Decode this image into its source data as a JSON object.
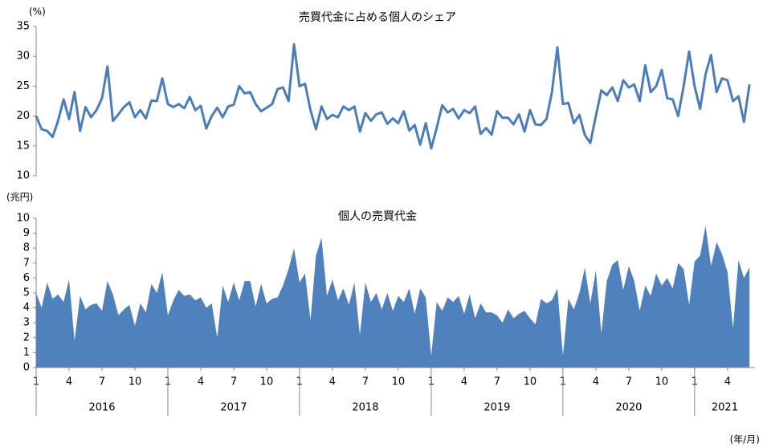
{
  "chart_data": [
    {
      "type": "line",
      "title": "売買代金に占める個人のシェア",
      "y_label": "(%)",
      "color": "#4a7ebb",
      "xlim": [
        0,
        65.5
      ],
      "ylim": [
        10,
        35
      ],
      "yticks": [
        10,
        15,
        20,
        25,
        30,
        35
      ],
      "x": [
        0,
        0.5,
        1,
        1.5,
        2,
        2.5,
        3,
        3.5,
        4,
        4.5,
        5,
        5.5,
        6,
        6.5,
        7,
        7.5,
        8,
        8.5,
        9,
        9.5,
        10,
        10.5,
        11,
        11.5,
        12,
        12.5,
        13,
        13.5,
        14,
        14.5,
        15,
        15.5,
        16,
        16.5,
        17,
        17.5,
        18,
        18.5,
        19,
        19.5,
        20,
        20.5,
        21,
        21.5,
        22,
        22.5,
        23,
        23.5,
        24,
        24.5,
        25,
        25.5,
        26,
        26.5,
        27,
        27.5,
        28,
        28.5,
        29,
        29.5,
        30,
        30.5,
        31,
        31.5,
        32,
        32.5,
        33,
        33.5,
        34,
        34.5,
        35,
        35.5,
        36,
        36.5,
        37,
        37.5,
        38,
        38.5,
        39,
        39.5,
        40,
        40.5,
        41,
        41.5,
        42,
        42.5,
        43,
        43.5,
        44,
        44.5,
        45,
        45.5,
        46,
        46.5,
        47,
        47.5,
        48,
        48.5,
        49,
        49.5,
        50,
        50.5,
        51,
        51.5,
        52,
        52.5,
        53,
        53.5,
        54,
        54.5,
        55,
        55.5,
        56,
        56.5,
        57,
        57.5,
        58,
        58.5,
        59,
        59.5,
        60,
        60.5,
        61,
        61.5,
        62,
        62.5,
        63,
        63.5,
        64,
        64.5,
        65
      ],
      "values": [
        20,
        17.8,
        17.5,
        16.5,
        19.2,
        22.8,
        19.5,
        24,
        17.5,
        21.5,
        19.8,
        21,
        23,
        28.3,
        19.2,
        20.3,
        21.5,
        22.3,
        19.8,
        21,
        19.6,
        22.6,
        22.5,
        26.3,
        22,
        21.5,
        22,
        21.3,
        23.2,
        21,
        21.7,
        17.9,
        20,
        21.4,
        19.8,
        21.6,
        21.9,
        25,
        23.8,
        24,
        22,
        20.8,
        21.4,
        22,
        24.5,
        24.8,
        22.5,
        32,
        25,
        25.4,
        21,
        17.8,
        21.6,
        19.5,
        20.2,
        19.8,
        21.6,
        21,
        21.6,
        17.4,
        20.5,
        19.2,
        20.3,
        20.6,
        18.7,
        19.6,
        18.8,
        20.8,
        17.6,
        18.5,
        15.2,
        18.8,
        14.6,
        18,
        21.8,
        20.6,
        21.2,
        19.6,
        21,
        20.5,
        21.6,
        17,
        18,
        16.9,
        20.8,
        19.7,
        19.7,
        18.6,
        20.3,
        17.4,
        21,
        18.6,
        18.5,
        19.5,
        24,
        31.5,
        22,
        22.2,
        18.8,
        20.2,
        16.8,
        15.5,
        20,
        24.3,
        23.5,
        24.8,
        22.5,
        26,
        24.8,
        25.3,
        22.5,
        28.5,
        24,
        25,
        27.7,
        23,
        22.8,
        20,
        25,
        30.8,
        25,
        21.2,
        27,
        30.2,
        24,
        26.3,
        26,
        22.5,
        23.3,
        19,
        25.3
      ]
    },
    {
      "type": "area",
      "title": "個人の売買代金",
      "y_label": "(兆円)",
      "x_label": "(年/月)",
      "color": "#4f81bd",
      "xlim": [
        0,
        65.5
      ],
      "ylim": [
        0,
        10
      ],
      "yticks": [
        0,
        1,
        2,
        3,
        4,
        5,
        6,
        7,
        8,
        9,
        10
      ],
      "xticks": [
        {
          "value": 0,
          "label": "1"
        },
        {
          "value": 3,
          "label": "4"
        },
        {
          "value": 6,
          "label": "7"
        },
        {
          "value": 9,
          "label": "10"
        },
        {
          "value": 12,
          "label": "1"
        },
        {
          "value": 15,
          "label": "4"
        },
        {
          "value": 18,
          "label": "7"
        },
        {
          "value": 21,
          "label": "10"
        },
        {
          "value": 24,
          "label": "1"
        },
        {
          "value": 27,
          "label": "4"
        },
        {
          "value": 30,
          "label": "7"
        },
        {
          "value": 33,
          "label": "10"
        },
        {
          "value": 36,
          "label": "1"
        },
        {
          "value": 39,
          "label": "4"
        },
        {
          "value": 42,
          "label": "7"
        },
        {
          "value": 45,
          "label": "10"
        },
        {
          "value": 48,
          "label": "1"
        },
        {
          "value": 51,
          "label": "4"
        },
        {
          "value": 54,
          "label": "7"
        },
        {
          "value": 57,
          "label": "10"
        },
        {
          "value": 60,
          "label": "1"
        },
        {
          "value": 63,
          "label": "4"
        }
      ],
      "xgroups": [
        {
          "label": "2016",
          "range": [
            0,
            12
          ]
        },
        {
          "label": "2017",
          "range": [
            12,
            24
          ]
        },
        {
          "label": "2018",
          "range": [
            24,
            36
          ]
        },
        {
          "label": "2019",
          "range": [
            36,
            48
          ]
        },
        {
          "label": "2020",
          "range": [
            48,
            60
          ]
        },
        {
          "label": "2021",
          "range": [
            60,
            65.5
          ]
        }
      ],
      "x": [
        0,
        0.5,
        1,
        1.5,
        2,
        2.5,
        3,
        3.5,
        4,
        4.5,
        5,
        5.5,
        6,
        6.5,
        7,
        7.5,
        8,
        8.5,
        9,
        9.5,
        10,
        10.5,
        11,
        11.5,
        12,
        12.5,
        13,
        13.5,
        14,
        14.5,
        15,
        15.5,
        16,
        16.5,
        17,
        17.5,
        18,
        18.5,
        19,
        19.5,
        20,
        20.5,
        21,
        21.5,
        22,
        22.5,
        23,
        23.5,
        24,
        24.5,
        25,
        25.5,
        26,
        26.5,
        27,
        27.5,
        28,
        28.5,
        29,
        29.5,
        30,
        30.5,
        31,
        31.5,
        32,
        32.5,
        33,
        33.5,
        34,
        34.5,
        35,
        35.5,
        36,
        36.5,
        37,
        37.5,
        38,
        38.5,
        39,
        39.5,
        40,
        40.5,
        41,
        41.5,
        42,
        42.5,
        43,
        43.5,
        44,
        44.5,
        45,
        45.5,
        46,
        46.5,
        47,
        47.5,
        48,
        48.5,
        49,
        49.5,
        50,
        50.5,
        51,
        51.5,
        52,
        52.5,
        53,
        53.5,
        54,
        54.5,
        55,
        55.5,
        56,
        56.5,
        57,
        57.5,
        58,
        58.5,
        59,
        59.5,
        60,
        60.5,
        61,
        61.5,
        62,
        62.5,
        63,
        63.5,
        64,
        64.5,
        65
      ],
      "values": [
        5,
        4,
        5.7,
        4.6,
        4.9,
        4.4,
        5.9,
        1.8,
        4.8,
        3.9,
        4.2,
        4.3,
        3.8,
        5.8,
        4.9,
        3.5,
        3.9,
        4.2,
        2.8,
        4.3,
        3.7,
        5.6,
        5,
        6.4,
        3.5,
        4.5,
        5.2,
        4.8,
        4.9,
        4.5,
        4.7,
        4,
        4.3,
        2,
        5.5,
        4.4,
        5.7,
        4.5,
        5.8,
        5.8,
        4.1,
        5.6,
        4.3,
        4.6,
        4.7,
        5.5,
        6.6,
        8,
        5.7,
        6.3,
        3.2,
        7.5,
        8.7,
        4.8,
        5.9,
        4.5,
        5.3,
        4.2,
        5.7,
        2.2,
        5.7,
        4.4,
        5,
        3.9,
        5,
        3.8,
        4.8,
        4.4,
        5.3,
        3.6,
        5.3,
        4.7,
        0.8,
        4.4,
        3.8,
        4.7,
        4.4,
        4.8,
        3.6,
        4.9,
        3.3,
        4.3,
        3.7,
        3.7,
        3.5,
        3,
        3.9,
        3.3,
        3.6,
        3.8,
        3.3,
        2.9,
        4.6,
        4.3,
        4.5,
        5.3,
        0.8,
        4.6,
        3.9,
        5,
        6.7,
        4.3,
        6.5,
        2.3,
        5.8,
        6.9,
        7.2,
        5.2,
        6.8,
        5.8,
        3.8,
        5.5,
        4.8,
        6.3,
        5.5,
        6,
        5.3,
        7,
        6.6,
        4.2,
        7.1,
        7.5,
        9.5,
        6.8,
        8.4,
        7.6,
        6.4,
        2.6,
        7.2,
        6,
        6.7
      ]
    }
  ]
}
